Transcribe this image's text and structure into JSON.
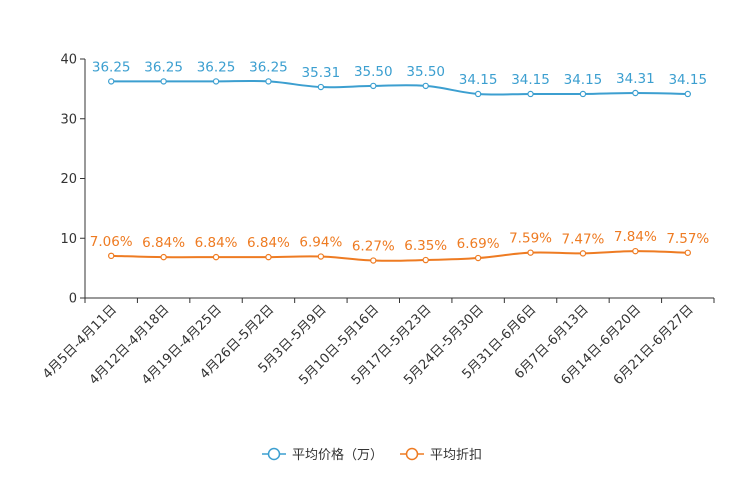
{
  "chart_data": {
    "type": "line",
    "title": "",
    "xlabel": "",
    "ylabel": "",
    "ylim": [
      0,
      40
    ],
    "yticks": [
      0,
      10,
      20,
      30,
      40
    ],
    "grid": false,
    "legend_position": "bottom",
    "categories": [
      "4月5日-4月11日",
      "4月12日-4月18日",
      "4月19日-4月25日",
      "4月26日-5月2日",
      "5月3日-5月9日",
      "5月10日-5月16日",
      "5月17日-5月23日",
      "5月24日-5月30日",
      "5月31日-6月6日",
      "6月7日-6月13日",
      "6月14日-6月20日",
      "6月21日-6月27日"
    ],
    "series": [
      {
        "name": "平均价格（万）",
        "color": "#3c9fd0",
        "values": [
          36.25,
          36.25,
          36.25,
          36.25,
          35.31,
          35.5,
          35.5,
          34.15,
          34.15,
          34.15,
          34.31,
          34.15
        ],
        "labels": [
          "36.25",
          "36.25",
          "36.25",
          "36.25",
          "35.31",
          "35.50",
          "35.50",
          "34.15",
          "34.15",
          "34.15",
          "34.31",
          "34.15"
        ]
      },
      {
        "name": "平均折扣",
        "color": "#ee7b22",
        "values": [
          7.06,
          6.84,
          6.84,
          6.84,
          6.94,
          6.27,
          6.35,
          6.69,
          7.59,
          7.47,
          7.84,
          7.57
        ],
        "labels": [
          "7.06%",
          "6.84%",
          "6.84%",
          "6.84%",
          "6.94%",
          "6.27%",
          "6.35%",
          "6.69%",
          "7.59%",
          "7.47%",
          "7.84%",
          "7.57%"
        ]
      }
    ]
  }
}
